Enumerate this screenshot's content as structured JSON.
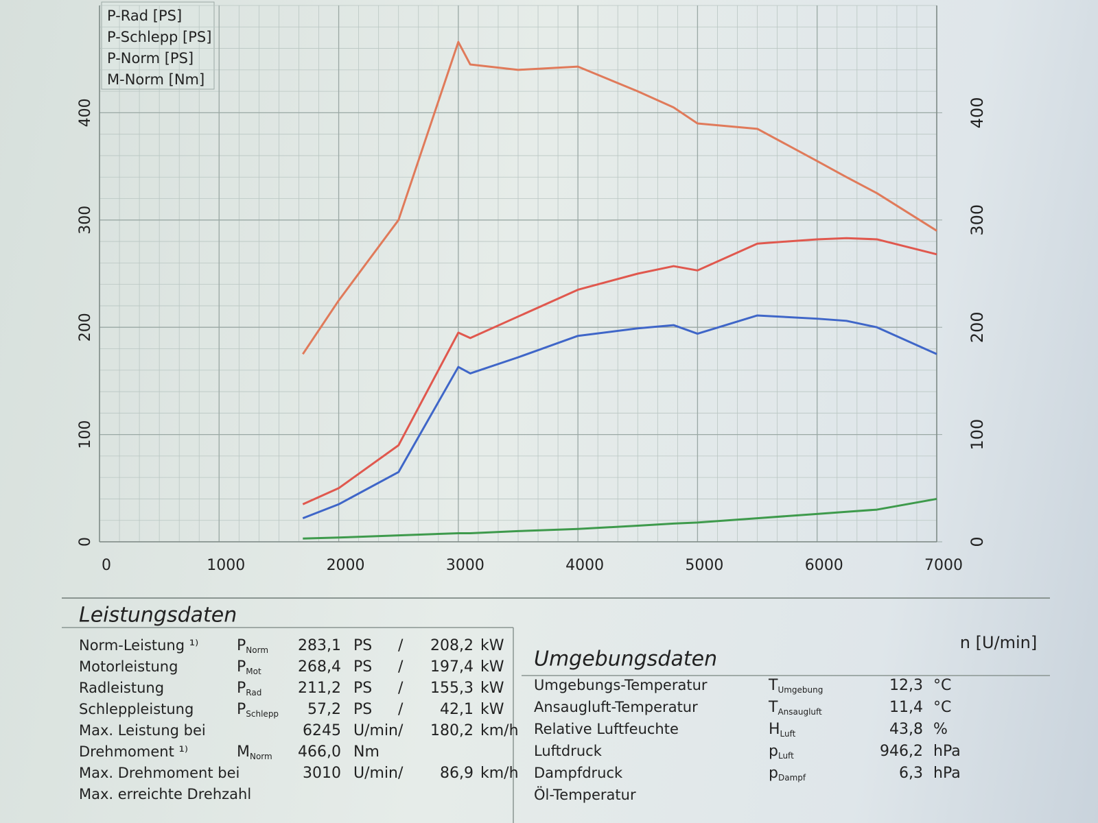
{
  "chart_data": {
    "type": "line",
    "x": [
      1700,
      2000,
      2500,
      3000,
      3100,
      3500,
      4000,
      4500,
      4800,
      5000,
      5500,
      6000,
      6245,
      6500,
      7000
    ],
    "series": [
      {
        "name": "P-Rad [PS]",
        "color": "#3f66c8",
        "values": [
          22,
          35,
          65,
          163,
          157,
          172,
          192,
          199,
          202,
          194,
          211,
          208,
          206,
          200,
          175
        ]
      },
      {
        "name": "P-Schlepp [PS]",
        "color": "#3e9a4c",
        "values": [
          3,
          4,
          6,
          8,
          8,
          10,
          12,
          15,
          17,
          18,
          22,
          26,
          28,
          30,
          40
        ]
      },
      {
        "name": "P-Norm [PS]",
        "color": "#e0584e",
        "values": [
          35,
          50,
          90,
          195,
          190,
          210,
          235,
          250,
          257,
          253,
          278,
          282,
          283.1,
          282,
          268
        ]
      },
      {
        "name": "M-Norm [Nm]",
        "color": "#e07a5a",
        "axis": "y2",
        "values": [
          175,
          225,
          300,
          466,
          445,
          440,
          443,
          420,
          405,
          390,
          385,
          355,
          340,
          325,
          290
        ]
      }
    ],
    "xlim": [
      0,
      7000
    ],
    "xticks": [
      0,
      1000,
      2000,
      3000,
      4000,
      5000,
      6000,
      7000
    ],
    "xlabel": "n [U/min]",
    "ylim": [
      0,
      500
    ],
    "yticks": [
      0,
      100,
      200,
      300,
      400
    ],
    "y2lim": [
      0,
      500
    ],
    "y2ticks": [
      0,
      100,
      200,
      300,
      400
    ],
    "grid": true,
    "legend": "upper left"
  },
  "performance": {
    "title": "Leistungsdaten",
    "rows": [
      {
        "label": "Norm-Leistung ¹⁾",
        "color": "#d9463c",
        "symbol": "P",
        "sub": "Norm",
        "v1": "283,1",
        "u1": "PS",
        "sep": "/",
        "v2": "208,2",
        "u2": "kW"
      },
      {
        "label": "Motorleistung",
        "color": "#d9463c",
        "symbol": "P",
        "sub": "Mot",
        "v1": "268,4",
        "u1": "PS",
        "sep": "/",
        "v2": "197,4",
        "u2": "kW"
      },
      {
        "label": "Radleistung",
        "color": "#3f66c8",
        "symbol": "P",
        "sub": "Rad",
        "v1": "211,2",
        "u1": "PS",
        "sep": "/",
        "v2": "155,3",
        "u2": "kW"
      },
      {
        "label": "Schleppleistung",
        "color": "#3e9a4c",
        "symbol": "P",
        "sub": "Schlepp",
        "v1": "57,2",
        "u1": "PS",
        "sep": "/",
        "v2": "42,1",
        "u2": "kW"
      },
      {
        "label": "Max. Leistung bei",
        "color": "#111111",
        "v1": "6245",
        "u1": "U/min",
        "sep": "/",
        "v2": "180,2",
        "u2": "km/h"
      },
      {
        "label": "Drehmoment ¹⁾",
        "color": "#d9463c",
        "symbol": "M",
        "sub": "Norm",
        "v1": "466,0",
        "u1": "Nm"
      },
      {
        "label": "Max. Drehmoment bei",
        "color": "#111111",
        "v1": "3010",
        "u1": "U/min",
        "sep": "/",
        "v2": "86,9",
        "u2": "km/h"
      },
      {
        "label": "Max. erreichte Drehzahl",
        "color": "#111111"
      }
    ]
  },
  "environment": {
    "title": "Umgebungsdaten",
    "rows": [
      {
        "label": "Umgebungs-Temperatur",
        "symbol": "T",
        "sub": "Umgebung",
        "v1": "12,3",
        "u1": "°C"
      },
      {
        "label": "Ansaugluft-Temperatur",
        "symbol": "T",
        "sub": "Ansaugluft",
        "v1": "11,4",
        "u1": "°C"
      },
      {
        "label": "Relative Luftfeuchte",
        "symbol": "H",
        "sub": "Luft",
        "v1": "43,8",
        "u1": "%"
      },
      {
        "label": "Luftdruck",
        "symbol": "p",
        "sub": "Luft",
        "v1": "946,2",
        "u1": "hPa"
      },
      {
        "label": "Dampfdruck",
        "symbol": "p",
        "sub": "Dampf",
        "v1": "6,3",
        "u1": "hPa"
      },
      {
        "label": "Öl-Temperatur"
      }
    ]
  }
}
